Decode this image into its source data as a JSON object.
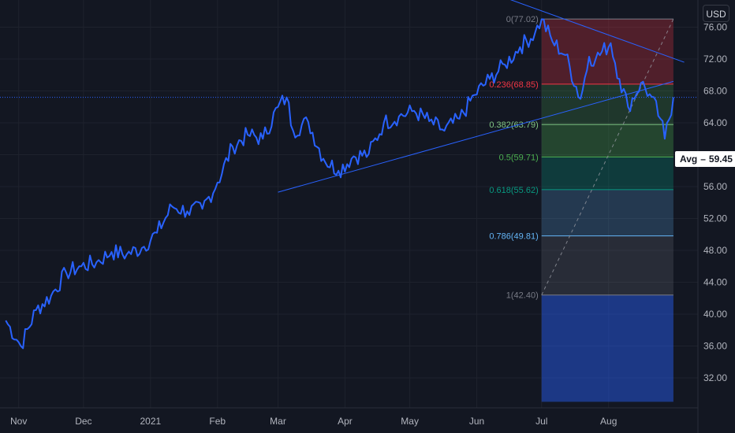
{
  "chart_data": {
    "type": "line",
    "currency": "USD",
    "ylim": [
      30,
      80
    ],
    "y_ticks": [
      32,
      36,
      40,
      44,
      48,
      52,
      56,
      60,
      64,
      68,
      72,
      76
    ],
    "x_tick_labels": [
      "Nov",
      "Dec",
      "2021",
      "Feb",
      "Mar",
      "Apr",
      "May",
      "Jun",
      "Jul",
      "Aug"
    ],
    "series": [
      {
        "color": "#2962ff",
        "x": [
          "2020-10-26",
          "2020-11-02",
          "2020-11-09",
          "2020-11-16",
          "2020-11-23",
          "2020-11-30",
          "2020-12-07",
          "2020-12-14",
          "2020-12-21",
          "2020-12-28",
          "2021-01-04",
          "2021-01-11",
          "2021-01-18",
          "2021-01-25",
          "2021-02-01",
          "2021-02-08",
          "2021-02-15",
          "2021-02-22",
          "2021-03-01",
          "2021-03-05",
          "2021-03-08",
          "2021-03-15",
          "2021-03-22",
          "2021-03-29",
          "2021-04-05",
          "2021-04-12",
          "2021-04-19",
          "2021-04-26",
          "2021-05-03",
          "2021-05-10",
          "2021-05-17",
          "2021-05-24",
          "2021-05-31",
          "2021-06-07",
          "2021-06-14",
          "2021-06-21",
          "2021-06-28",
          "2021-07-01",
          "2021-07-06",
          "2021-07-12",
          "2021-07-19",
          "2021-07-23",
          "2021-07-26",
          "2021-08-02",
          "2021-08-06",
          "2021-08-10",
          "2021-08-16",
          "2021-08-20",
          "2021-08-25",
          "2021-08-27",
          "2021-08-31"
        ],
        "y": [
          39.2,
          36.0,
          40.5,
          42.3,
          45.2,
          46.0,
          46.5,
          47.8,
          47.5,
          48.3,
          50.2,
          53.5,
          52.9,
          53.2,
          56.5,
          61.0,
          62.5,
          62.0,
          66.0,
          67.2,
          63.0,
          64.1,
          59.5,
          58.0,
          59.8,
          60.1,
          64.0,
          64.8,
          65.5,
          64.2,
          63.0,
          64.5,
          67.5,
          69.5,
          71.3,
          73.5,
          75.3,
          77.0,
          74.2,
          72.5,
          67.0,
          72.3,
          72.0,
          74.0,
          69.5,
          66.0,
          69.0,
          67.6,
          64.5,
          62.0,
          67.2
        ]
      }
    ],
    "horizontal_line": 67.2,
    "avg_label": "Avg",
    "avg_value": "59.45",
    "avg_price": 59.45,
    "fib_start_date": "2021-07-01",
    "fib_end_date": "2021-08-31",
    "fib_levels": [
      {
        "label": "0(77.02)",
        "value": 77.02,
        "line_color": "#787b86",
        "fill": "rgba(242,54,69,0.28)",
        "text_color": "#787b86"
      },
      {
        "label": "0.236(68.85)",
        "value": 68.85,
        "line_color": "#f23645",
        "fill": "rgba(76,175,80,0.22)",
        "text_color": "#f23645"
      },
      {
        "label": "0.382(63.79)",
        "value": 63.79,
        "line_color": "#81c784",
        "fill": "rgba(76,175,80,0.30)",
        "text_color": "#81c784"
      },
      {
        "label": "0.5(59.71)",
        "value": 59.71,
        "line_color": "#4caf50",
        "fill": "rgba(8,153,129,0.28)",
        "text_color": "#4caf50"
      },
      {
        "label": "0.618(55.62)",
        "value": 55.62,
        "line_color": "#089981",
        "fill": "rgba(100,181,246,0.22)",
        "text_color": "#089981"
      },
      {
        "label": "0.786(49.81)",
        "value": 49.81,
        "line_color": "#64b5f6",
        "fill": "rgba(120,123,134,0.22)",
        "text_color": "#64b5f6"
      },
      {
        "label": "1(42.40)",
        "value": 42.4,
        "line_color": "#787b86",
        "fill": "rgba(41,98,255,0.45)",
        "text_color": "#787b86"
      }
    ],
    "fib_bottom": 29.0,
    "trendlines": [
      {
        "x1": "2021-03-01",
        "y1": 55.3,
        "x2": "2021-08-31",
        "y2": 69.2
      },
      {
        "x1": "2021-06-14",
        "y1": 79.7,
        "x2": "2021-09-05",
        "y2": 71.6
      },
      {
        "x1": "2021-07-01",
        "y1": 42.4,
        "x2": "2021-08-31",
        "y2": 77.02,
        "dashed": true
      }
    ]
  }
}
